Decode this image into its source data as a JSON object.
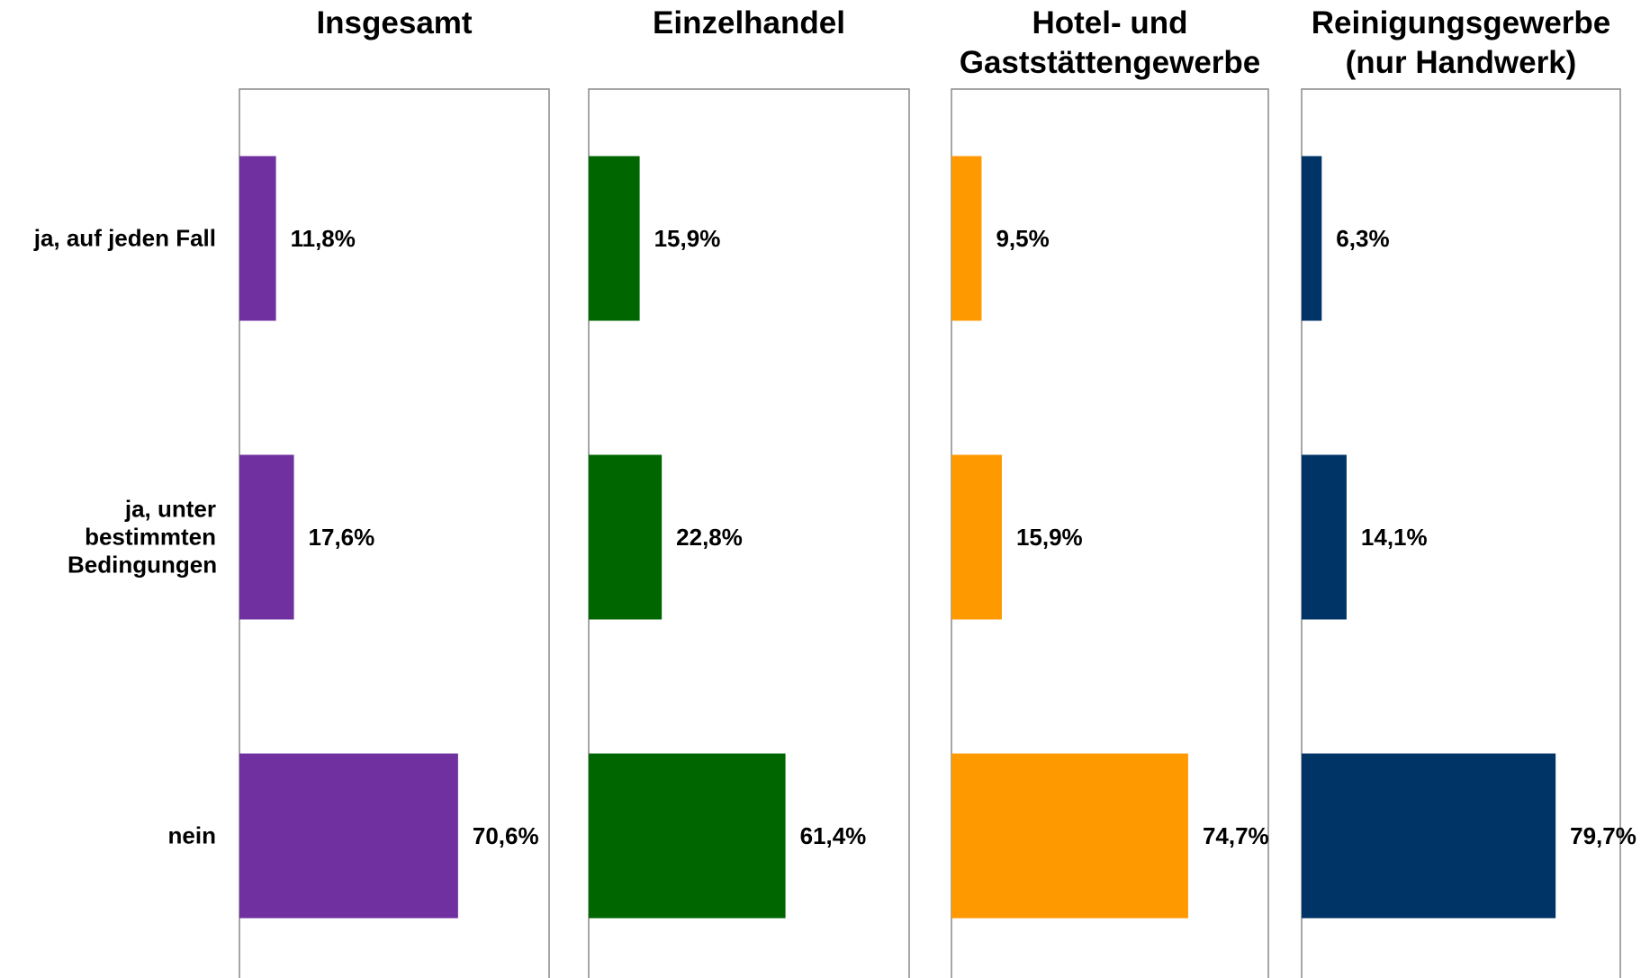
{
  "chart_data": [
    {
      "type": "bar",
      "orientation": "horizontal",
      "title": "Insgesamt",
      "categories": [
        "ja, auf jeden Fall",
        "ja, unter bestimmten Bedingungen",
        "nein"
      ],
      "values": [
        11.8,
        17.6,
        70.6
      ],
      "value_labels": [
        "11,8%",
        "17,6%",
        "70,6%"
      ],
      "color": "#7030a0",
      "xlim": [
        0,
        100
      ]
    },
    {
      "type": "bar",
      "orientation": "horizontal",
      "title": "Einzelhandel",
      "values": [
        15.9,
        22.8,
        61.4
      ],
      "value_labels": [
        "15,9%",
        "22,8%",
        "61,4%"
      ],
      "color": "#006600",
      "xlim": [
        0,
        100
      ]
    },
    {
      "type": "bar",
      "orientation": "horizontal",
      "title": "Hotel- und Gaststättengewerbe",
      "values": [
        9.5,
        15.9,
        74.7
      ],
      "value_labels": [
        "9,5%",
        "15,9%",
        "74,7%"
      ],
      "color": "#ff9900",
      "xlim": [
        0,
        100
      ]
    },
    {
      "type": "bar",
      "orientation": "horizontal",
      "title": "Reinigungsgewerbe (nur Handwerk)",
      "values": [
        6.3,
        14.1,
        79.7
      ],
      "value_labels": [
        "6,3%",
        "14,1%",
        "79,7%"
      ],
      "color": "#003366",
      "xlim": [
        0,
        100
      ]
    }
  ]
}
